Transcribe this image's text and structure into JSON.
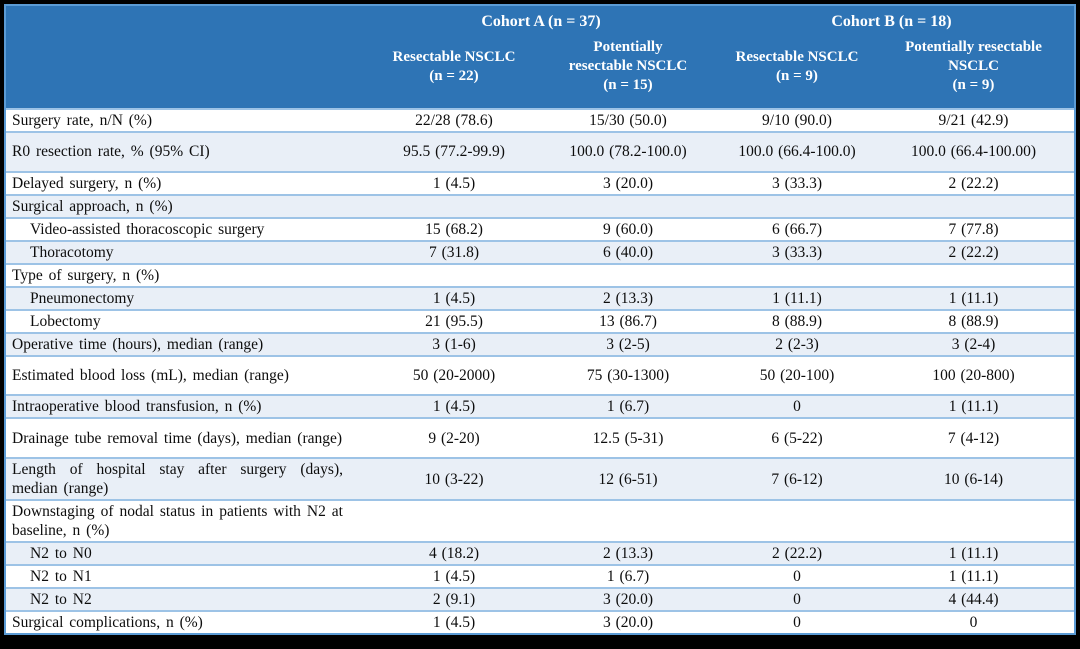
{
  "colors": {
    "header_bg": "#2E74B5",
    "banded_row_bg": "#E9EFF7",
    "inner_rule": "#9DC3E6",
    "outer_rule": "#5B9BD5",
    "frame": "#000000",
    "header_text": "#FFFFFF",
    "body_text": "#0D0D0D"
  },
  "table": {
    "cohorts": [
      {
        "label": "Cohort A (n = 37)"
      },
      {
        "label": "Cohort B (n = 18)"
      }
    ],
    "columns": [
      {
        "lines": [
          "Resectable NSCLC",
          "(n = 22)"
        ]
      },
      {
        "lines": [
          "Potentially",
          "resectable NSCLC",
          "(n = 15)"
        ]
      },
      {
        "lines": [
          "Resectable NSCLC",
          "(n = 9)"
        ]
      },
      {
        "lines": [
          "Potentially resectable",
          "NSCLC",
          "(n = 9)"
        ]
      }
    ],
    "rows": [
      {
        "label": "Surgery rate, n/N (%)",
        "indent": false,
        "shaded": false,
        "tall": false,
        "values": [
          "22/28 (78.6)",
          "15/30 (50.0)",
          "9/10 (90.0)",
          "9/21 (42.9)"
        ]
      },
      {
        "label": "R0 resection rate, % (95% CI)",
        "indent": false,
        "shaded": true,
        "tall": true,
        "values": [
          "95.5 (77.2-99.9)",
          "100.0 (78.2-100.0)",
          "100.0 (66.4-100.0)",
          "100.0 (66.4-100.00)"
        ]
      },
      {
        "label": "Delayed surgery, n (%)",
        "indent": false,
        "shaded": false,
        "tall": false,
        "values": [
          "1 (4.5)",
          "3 (20.0)",
          "3 (33.3)",
          "2 (22.2)"
        ]
      },
      {
        "label": "Surgical approach, n (%)",
        "indent": false,
        "shaded": true,
        "tall": false,
        "values": [
          "",
          "",
          "",
          ""
        ]
      },
      {
        "label": "Video-assisted thoracoscopic surgery",
        "indent": true,
        "shaded": false,
        "tall": false,
        "values": [
          "15 (68.2)",
          "9 (60.0)",
          "6 (66.7)",
          "7 (77.8)"
        ]
      },
      {
        "label": "Thoracotomy",
        "indent": true,
        "shaded": true,
        "tall": false,
        "values": [
          "7 (31.8)",
          "6 (40.0)",
          "3 (33.3)",
          "2 (22.2)"
        ]
      },
      {
        "label": "Type of surgery, n (%)",
        "indent": false,
        "shaded": false,
        "tall": false,
        "values": [
          "",
          "",
          "",
          ""
        ]
      },
      {
        "label": "Pneumonectomy",
        "indent": true,
        "shaded": true,
        "tall": false,
        "values": [
          "1 (4.5)",
          "2 (13.3)",
          "1 (11.1)",
          "1 (11.1)"
        ]
      },
      {
        "label": "Lobectomy",
        "indent": true,
        "shaded": false,
        "tall": false,
        "values": [
          "21 (95.5)",
          "13 (86.7)",
          "8 (88.9)",
          "8 (88.9)"
        ]
      },
      {
        "label": "Operative time (hours), median (range)",
        "indent": false,
        "shaded": true,
        "tall": false,
        "values": [
          "3 (1-6)",
          "3 (2-5)",
          "2 (2-3)",
          "3 (2-4)"
        ]
      },
      {
        "label": "Estimated blood loss (mL), median (range)",
        "indent": false,
        "shaded": false,
        "tall": true,
        "values": [
          "50 (20-2000)",
          "75 (30-1300)",
          "50 (20-100)",
          "100 (20-800)"
        ]
      },
      {
        "label": "Intraoperative blood transfusion, n (%)",
        "indent": false,
        "shaded": true,
        "tall": false,
        "values": [
          "1 (4.5)",
          "1 (6.7)",
          "0",
          "1 (11.1)"
        ]
      },
      {
        "label": "Drainage tube removal time (days), median (range)",
        "indent": false,
        "shaded": false,
        "tall": true,
        "values": [
          "9 (2-20)",
          "12.5 (5-31)",
          "6 (5-22)",
          "7 (4-12)"
        ]
      },
      {
        "label": "Length of hospital stay after surgery (days), median (range)",
        "indent": false,
        "shaded": true,
        "tall": true,
        "values": [
          "10 (3-22)",
          "12 (6-51)",
          "7 (6-12)",
          "10 (6-14)"
        ]
      },
      {
        "label": "Downstaging of nodal status in patients with N2 at baseline, n (%)",
        "indent": false,
        "shaded": false,
        "tall": true,
        "values": [
          "",
          "",
          "",
          ""
        ]
      },
      {
        "label": "N2 to N0",
        "indent": true,
        "shaded": true,
        "tall": false,
        "values": [
          "4 (18.2)",
          "2 (13.3)",
          "2 (22.2)",
          "1 (11.1)"
        ]
      },
      {
        "label": "N2 to N1",
        "indent": true,
        "shaded": false,
        "tall": false,
        "values": [
          "1 (4.5)",
          "1 (6.7)",
          "0",
          "1 (11.1)"
        ]
      },
      {
        "label": "N2 to N2",
        "indent": true,
        "shaded": true,
        "tall": false,
        "values": [
          "2 (9.1)",
          "3 (20.0)",
          "0",
          "4 (44.4)"
        ]
      },
      {
        "label": "Surgical complications, n (%)",
        "indent": false,
        "shaded": false,
        "tall": false,
        "values": [
          "1 (4.5)",
          "3 (20.0)",
          "0",
          "0"
        ]
      }
    ]
  }
}
